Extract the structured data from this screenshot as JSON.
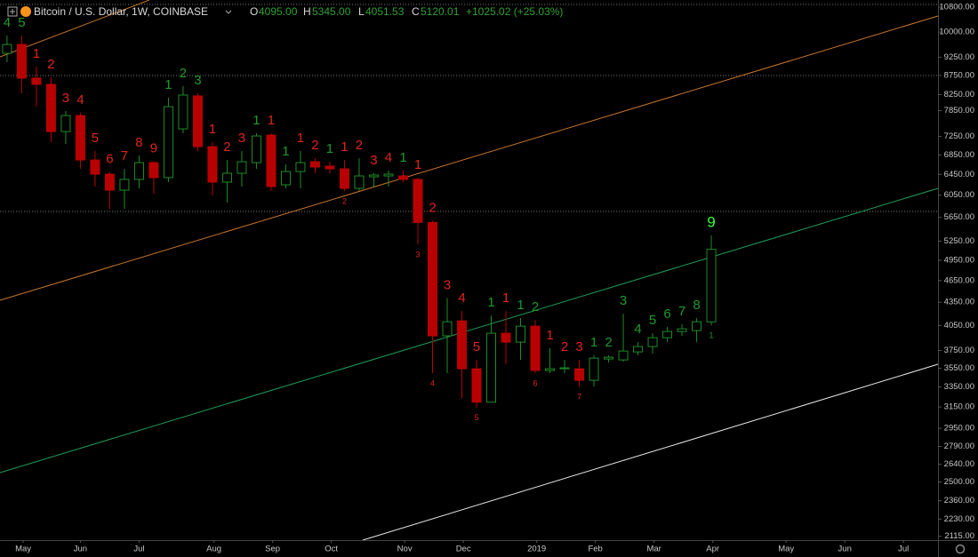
{
  "chart_data": {
    "type": "candlestick",
    "header": {
      "symbol": "Bitcoin / U.S. Dollar, 1W, COINBASE",
      "open_key": "O",
      "open": "4095.00",
      "high_key": "H",
      "high": "5345.00",
      "low_key": "L",
      "low": "4051.53",
      "close_key": "C",
      "close": "5120.01",
      "change": "+1025.02 (+25.03%)"
    },
    "x": [
      0,
      1,
      2,
      3,
      4,
      5,
      6,
      7,
      8,
      9,
      10,
      11,
      12,
      13,
      14,
      15,
      16,
      17,
      18,
      19,
      20,
      21,
      22,
      23,
      24,
      25,
      26,
      27,
      28,
      29,
      30,
      31,
      32,
      33,
      34,
      35,
      36,
      37,
      38,
      39,
      40,
      41,
      42,
      43,
      44,
      45,
      46,
      47,
      48
    ],
    "open": [
      9366,
      9626,
      8678,
      8512,
      7361,
      7733,
      6743,
      6455,
      6145,
      6351,
      6688,
      6386,
      7422,
      8214,
      7026,
      6299,
      6473,
      6688,
      7281,
      6247,
      6508,
      6707,
      6616,
      6562,
      6179,
      6403,
      6420,
      6420,
      6351,
      5563,
      3922,
      4107,
      3544,
      3197,
      3954,
      3847,
      4041,
      3525,
      3544,
      3544,
      3420,
      3652,
      3642,
      3733,
      3795,
      3900,
      3975,
      3986,
      4095
    ],
    "high": [
      9893,
      9893,
      8990,
      8700,
      7841,
      7800,
      6931,
      6500,
      6562,
      6836,
      6720,
      8169,
      8466,
      8282,
      7123,
      6743,
      6931,
      7321,
      7321,
      6652,
      6931,
      6780,
      6707,
      6743,
      6780,
      6473,
      6526,
      6526,
      6386,
      5593,
      4406,
      4233,
      3642,
      4175,
      4233,
      4141,
      4118,
      3775,
      3642,
      3642,
      3693,
      3693,
      4198,
      3847,
      3954,
      4030,
      4063,
      4141,
      5345
    ],
    "low": [
      9113,
      8282,
      7948,
      7123,
      7084,
      6562,
      6213,
      5800,
      5800,
      6179,
      6079,
      6299,
      7321,
      6931,
      6046,
      5914,
      6213,
      6562,
      6129,
      6179,
      6179,
      6473,
      6473,
      6129,
      6129,
      6213,
      6213,
      6299,
      5200,
      3496,
      3496,
      3233,
      3144,
      3197,
      3593,
      3642,
      3496,
      3496,
      3496,
      3356,
      3356,
      3613,
      3622,
      3693,
      3713,
      3847,
      3922,
      3847,
      4051.53
    ],
    "close": [
      9626,
      8678,
      8512,
      7361,
      7733,
      6743,
      6455,
      6145,
      6351,
      6688,
      6386,
      7948,
      8237,
      7026,
      6299,
      6473,
      6707,
      7261,
      6213,
      6508,
      6688,
      6598,
      6562,
      6179,
      6420,
      6438,
      6455,
      6351,
      5563,
      3922,
      4096,
      3544,
      3197,
      3954,
      3847,
      4041,
      3525,
      3544,
      3554,
      3420,
      3662,
      3672,
      3743,
      3795,
      3900,
      3975,
      4008,
      4096,
      5120.01
    ],
    "up_color": "#1e8c26",
    "down_color": "#b80000",
    "count_above": [
      "4",
      "5",
      "1",
      "2",
      "3",
      "4",
      "5",
      "6",
      "7",
      "8",
      "9",
      "1",
      "2",
      "3",
      "1",
      "2",
      "3",
      "1",
      "1",
      "1",
      "1",
      "2",
      "1",
      "1",
      "2",
      "3",
      "4",
      "1",
      "1",
      "2",
      "3",
      "4",
      "5",
      "1",
      "1",
      "1",
      "2",
      "1",
      "2",
      "3",
      "1",
      "2",
      "3",
      "4",
      "5",
      "6",
      "7",
      "8",
      "9"
    ],
    "count_above_colors": [
      "#1f9a2a",
      "#1f9a2a",
      "#e0241b",
      "#e0241b",
      "#e0241b",
      "#e0241b",
      "#e0241b",
      "#e0241b",
      "#e0241b",
      "#e0241b",
      "#e0241b",
      "#1f9a2a",
      "#1f9a2a",
      "#1f9a2a",
      "#e0241b",
      "#e0241b",
      "#e0241b",
      "#1f9a2a",
      "#e0241b",
      "#1f9a2a",
      "#e0241b",
      "#e0241b",
      "#1f9a2a",
      "#e0241b",
      "#e0241b",
      "#e0241b",
      "#e0241b",
      "#1f9a2a",
      "#e0241b",
      "#e0241b",
      "#e0241b",
      "#e0241b",
      "#e0241b",
      "#1f9a2a",
      "#e0241b",
      "#1f9a2a",
      "#1f9a2a",
      "#e0241b",
      "#e0241b",
      "#e0241b",
      "#1f9a2a",
      "#1f9a2a",
      "#1f9a2a",
      "#1f9a2a",
      "#1f9a2a",
      "#1f9a2a",
      "#1f9a2a",
      "#1f9a2a",
      "#39ff3a"
    ],
    "count_below": [
      null,
      null,
      null,
      null,
      null,
      null,
      null,
      null,
      null,
      null,
      null,
      null,
      null,
      null,
      null,
      null,
      null,
      null,
      null,
      null,
      null,
      null,
      null,
      "2",
      null,
      null,
      null,
      null,
      "3",
      "4",
      null,
      null,
      "5",
      null,
      null,
      null,
      "6",
      null,
      null,
      "7",
      null,
      null,
      null,
      null,
      null,
      null,
      null,
      null,
      "1"
    ],
    "count_below_colors": [
      null,
      null,
      null,
      null,
      null,
      null,
      null,
      null,
      null,
      null,
      null,
      null,
      null,
      null,
      null,
      null,
      null,
      null,
      null,
      null,
      null,
      null,
      null,
      "#e0241b",
      null,
      null,
      null,
      null,
      "#e0241b",
      "#e0241b",
      null,
      null,
      "#e0241b",
      null,
      null,
      null,
      "#e0241b",
      null,
      null,
      "#e0241b",
      null,
      null,
      null,
      null,
      null,
      null,
      null,
      null,
      "#1f9a2a"
    ],
    "xlim": [
      -0.48,
      63.45
    ],
    "xticks": [
      {
        "value": 1.1,
        "label": "May"
      },
      {
        "value": 5.0,
        "label": "Jun"
      },
      {
        "value": 9.0,
        "label": "Jul"
      },
      {
        "value": 14.1,
        "label": "Aug"
      },
      {
        "value": 18.1,
        "label": "Sep"
      },
      {
        "value": 22.1,
        "label": "Oct"
      },
      {
        "value": 27.1,
        "label": "Nov"
      },
      {
        "value": 31.1,
        "label": "Dec"
      },
      {
        "value": 36.1,
        "label": "2019"
      },
      {
        "value": 40.1,
        "label": "Feb"
      },
      {
        "value": 44.1,
        "label": "Mar"
      },
      {
        "value": 48.1,
        "label": "Apr"
      },
      {
        "value": 53.1,
        "label": "May"
      },
      {
        "value": 57.1,
        "label": "Jun"
      },
      {
        "value": 61.1,
        "label": "Jul"
      }
    ],
    "ylim": [
      2090,
      11040
    ],
    "log_scale": true,
    "yticks": [
      {
        "value": 10800,
        "label": "10800.00"
      },
      {
        "value": 10000,
        "label": "10000.00"
      },
      {
        "value": 9250,
        "label": "9250.00"
      },
      {
        "value": 8750,
        "label": "8750.00"
      },
      {
        "value": 8250,
        "label": "8250.00"
      },
      {
        "value": 7850,
        "label": "7850.00"
      },
      {
        "value": 7250,
        "label": "7250.00"
      },
      {
        "value": 6850,
        "label": "6850.00"
      },
      {
        "value": 6450,
        "label": "6450.00"
      },
      {
        "value": 6050,
        "label": "6050.00"
      },
      {
        "value": 5650,
        "label": "5650.00"
      },
      {
        "value": 5250,
        "label": "5250.00"
      },
      {
        "value": 4950,
        "label": "4950.00"
      },
      {
        "value": 4650,
        "label": "4650.00"
      },
      {
        "value": 4350,
        "label": "4350.00"
      },
      {
        "value": 4050,
        "label": "4050.00"
      },
      {
        "value": 3750,
        "label": "3750.00"
      },
      {
        "value": 3550,
        "label": "3550.00"
      },
      {
        "value": 3350,
        "label": "3350.00"
      },
      {
        "value": 3150,
        "label": "3150.00"
      },
      {
        "value": 2950,
        "label": "2950.00"
      },
      {
        "value": 2790,
        "label": "2790.00"
      },
      {
        "value": 2640,
        "label": "2640.00"
      },
      {
        "value": 2500,
        "label": "2500.00"
      },
      {
        "value": 2360,
        "label": "2360.00"
      },
      {
        "value": 2230,
        "label": "2230.00"
      },
      {
        "value": 2115,
        "label": "2115.00"
      }
    ],
    "grid": false
  }
}
